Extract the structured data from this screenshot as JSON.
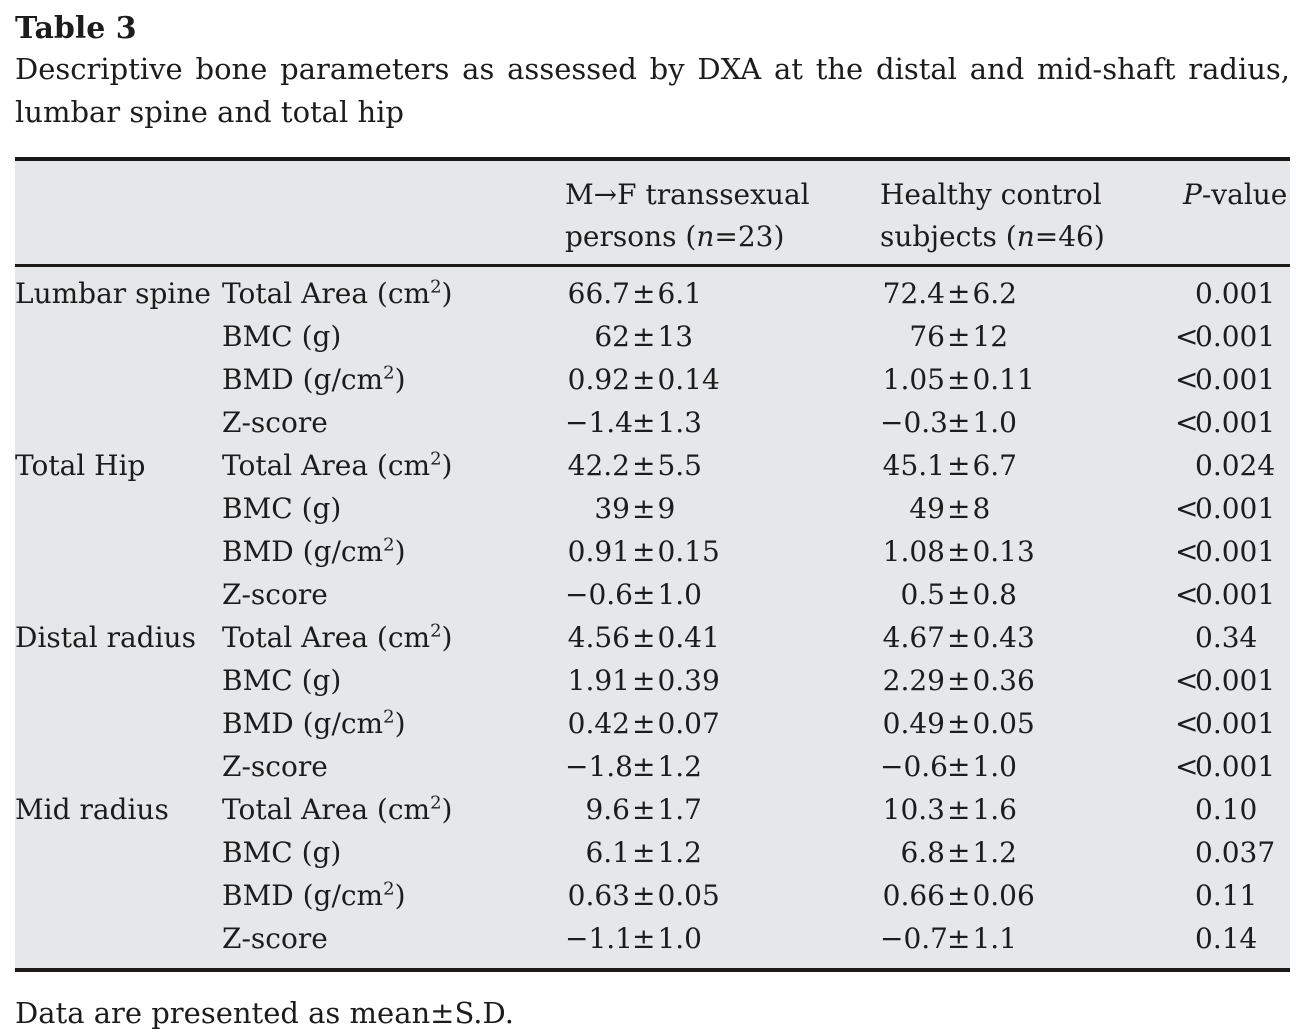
{
  "title": "Table 3",
  "caption_line1": "Descriptive bone parameters as assessed by DXA at the distal and mid-shaft radius,",
  "caption_line2": "lumbar spine and total hip",
  "footnote": "Data are presented as mean±S.D.",
  "colors": {
    "table_background": "#e6e7e8",
    "rule": "#1b1a19",
    "text": "#1d1c1c"
  },
  "table": {
    "columns": [
      {
        "label": ""
      },
      {
        "label": ""
      },
      {
        "line1": "M→F transsexual",
        "line2_pre": "persons (",
        "line2_italic": "n",
        "line2_post": "=23)"
      },
      {
        "line1": "Healthy control",
        "line2_pre": "subjects (",
        "line2_italic": "n",
        "line2_post": "=46)"
      },
      {
        "italic": "P",
        "rest": "-value"
      }
    ],
    "sections": [
      {
        "region": "Lumbar spine",
        "rows": [
          {
            "param": "Total Area (cm^2)",
            "mf": "66.7±6.1",
            "control": "72.4±6.2",
            "p": "0.001"
          },
          {
            "param": "BMC (g)",
            "mf": "62±13",
            "control": "76±12",
            "p": "<0.001"
          },
          {
            "param": "BMD (g/cm^2)",
            "mf": "0.92±0.14",
            "control": "1.05±0.11",
            "p": "<0.001"
          },
          {
            "param": "Z-score",
            "mf": "−1.4±1.3",
            "control": "−0.3±1.0",
            "p": "<0.001"
          }
        ]
      },
      {
        "region": "Total Hip",
        "rows": [
          {
            "param": "Total Area (cm^2)",
            "mf": "42.2±5.5",
            "control": "45.1±6.7",
            "p": "0.024"
          },
          {
            "param": "BMC (g)",
            "mf": "39±9",
            "control": "49±8",
            "p": "<0.001"
          },
          {
            "param": "BMD (g/cm^2)",
            "mf": "0.91±0.15",
            "control": "1.08±0.13",
            "p": "<0.001"
          },
          {
            "param": "Z-score",
            "mf": "−0.6±1.0",
            "control": "0.5±0.8",
            "p": "<0.001"
          }
        ]
      },
      {
        "region": "Distal radius",
        "rows": [
          {
            "param": "Total Area (cm^2)",
            "mf": "4.56±0.41",
            "control": "4.67±0.43",
            "p": "0.34"
          },
          {
            "param": "BMC (g)",
            "mf": "1.91±0.39",
            "control": "2.29±0.36",
            "p": "<0.001"
          },
          {
            "param": "BMD (g/cm^2)",
            "mf": "0.42±0.07",
            "control": "0.49±0.05",
            "p": "<0.001"
          },
          {
            "param": "Z-score",
            "mf": "−1.8±1.2",
            "control": "−0.6±1.0",
            "p": "<0.001"
          }
        ]
      },
      {
        "region": "Mid radius",
        "rows": [
          {
            "param": "Total Area (cm^2)",
            "mf": "9.6±1.7",
            "control": "10.3±1.6",
            "p": "0.10"
          },
          {
            "param": "BMC (g)",
            "mf": "6.1±1.2",
            "control": "6.8±1.2",
            "p": "0.037"
          },
          {
            "param": "BMD (g/cm^2)",
            "mf": "0.63±0.05",
            "control": "0.66±0.06",
            "p": "0.11"
          },
          {
            "param": "Z-score",
            "mf": "−1.1±1.0",
            "control": "−0.7±1.1",
            "p": "0.14"
          }
        ]
      }
    ]
  }
}
